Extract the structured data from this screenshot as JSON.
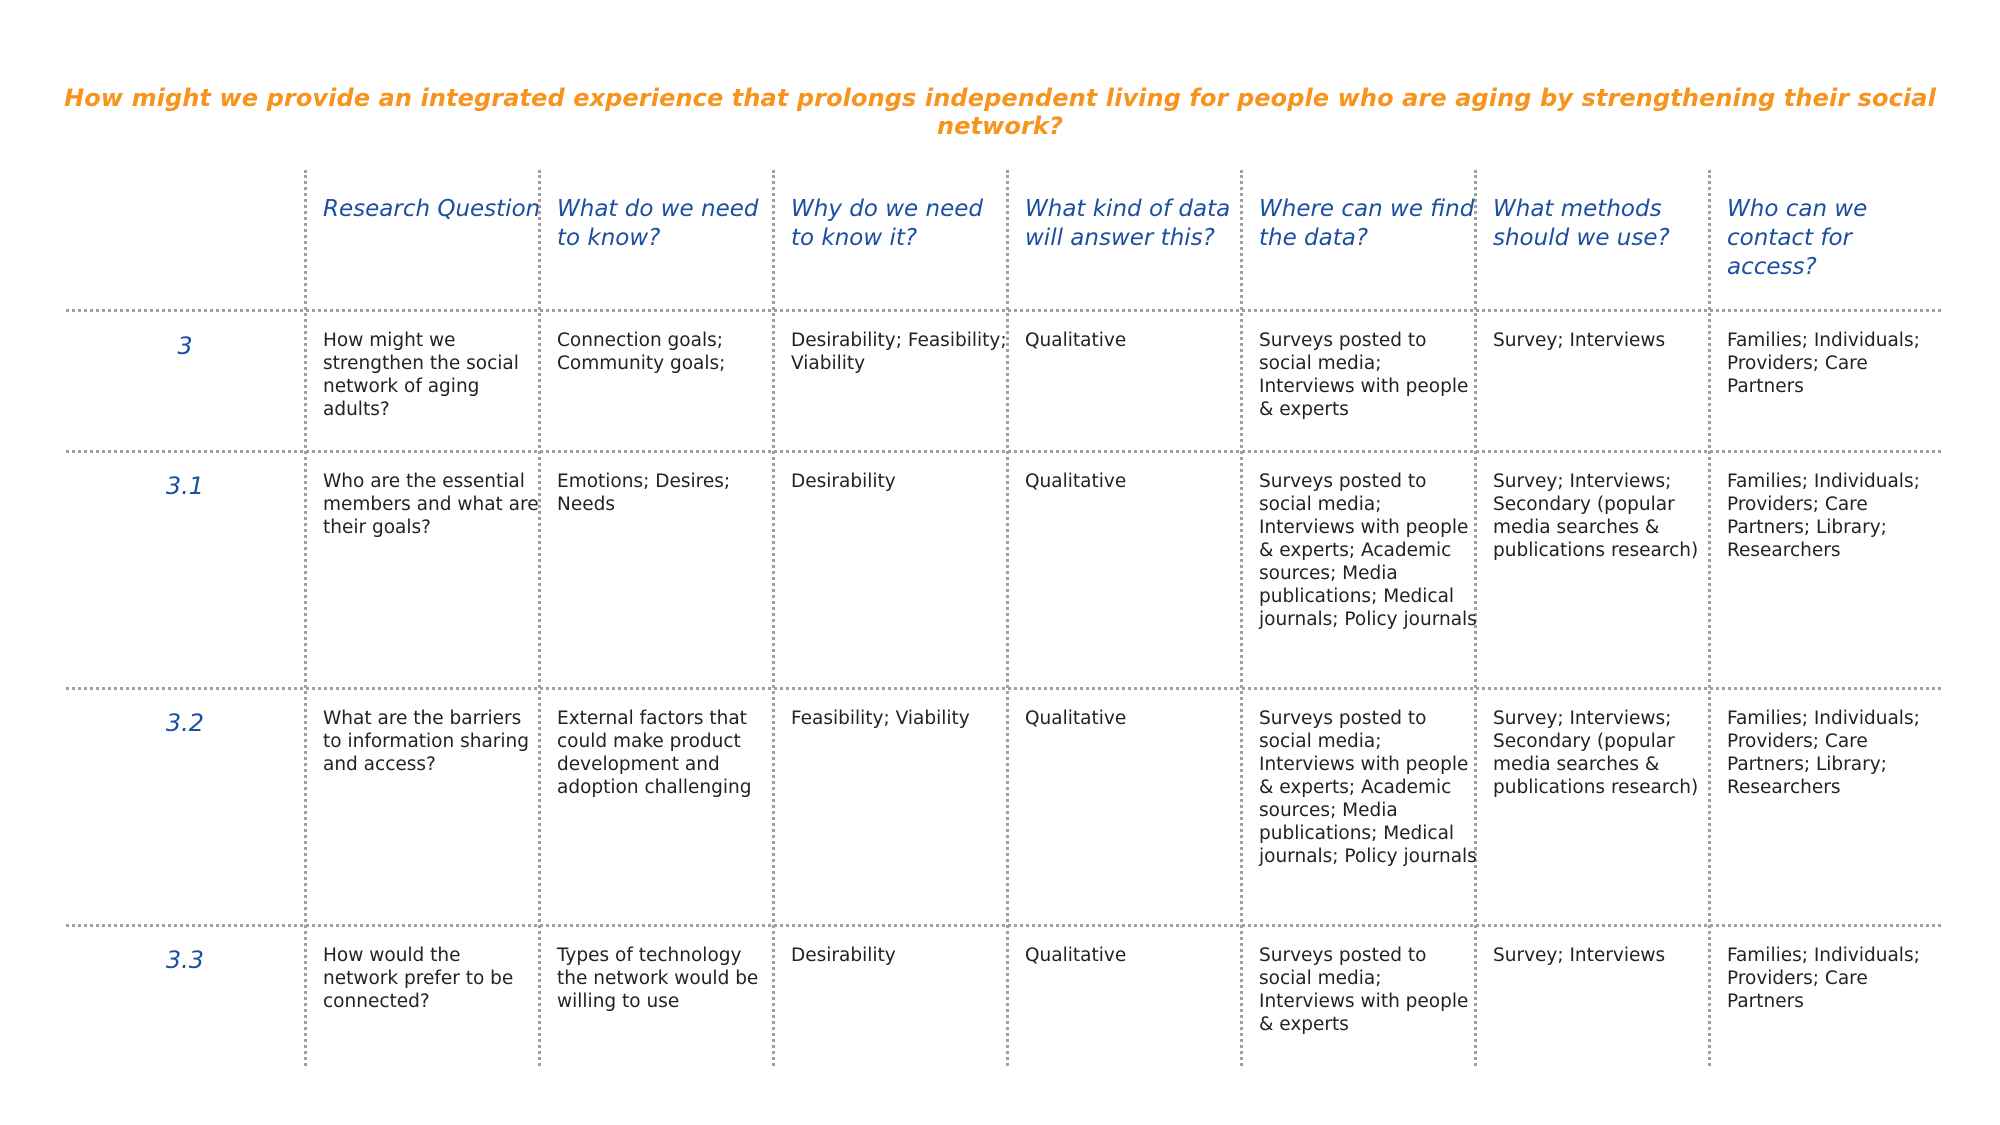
{
  "title": "How might we provide an integrated experience that prolongs independent living for people who are aging by strengthening their social network?",
  "headers": [
    "Research Question",
    "What do we need to know?",
    "Why do we need to know it?",
    "What kind of data will answer this?",
    "Where can we find the data?",
    "What methods should we use?",
    "Who can we contact for access?"
  ],
  "rows": [
    {
      "id": "3",
      "cells": [
        "How might we strengthen the social network of aging adults?",
        "Connection goals; Community goals;",
        "Desirability; Feasibility; Viability",
        "Qualitative",
        "Surveys posted to social media; Interviews with people & experts",
        "Survey; Interviews",
        "Families; Individuals; Providers; Care Partners"
      ]
    },
    {
      "id": "3.1",
      "cells": [
        "Who are the essential members and what are their goals?",
        "Emotions; Desires; Needs",
        "Desirability",
        "Qualitative",
        "Surveys posted to social media; Interviews with people & experts; Academic sources; Media publications; Medical journals; Policy journals",
        "Survey; Interviews; Secondary (popular media searches & publications research)",
        "Families; Individuals; Providers; Care Partners; Library; Researchers"
      ]
    },
    {
      "id": "3.2",
      "cells": [
        "What are the barriers to information sharing and access?",
        "External factors that could make product development and adoption challenging",
        "Feasibility; Viability",
        "Qualitative",
        "Surveys posted to social media; Interviews with people & experts; Academic sources; Media publications; Medical journals; Policy journals",
        "Survey; Interviews; Secondary (popular media searches & publications research)",
        "Families; Individuals; Providers; Care Partners; Library; Researchers"
      ]
    },
    {
      "id": "3.3",
      "cells": [
        "How would the network prefer to be connected?",
        "Types of technology the network would be willing to use",
        "Desirability",
        "Qualitative",
        "Surveys posted to social media; Interviews with people & experts",
        "Survey; Interviews",
        "Families; Individuals; Providers; Care Partners"
      ]
    }
  ],
  "colors": {
    "title": "#f7941d",
    "header": "#1c4fa1",
    "body": "#222222",
    "rule": "#a0a0a0"
  }
}
